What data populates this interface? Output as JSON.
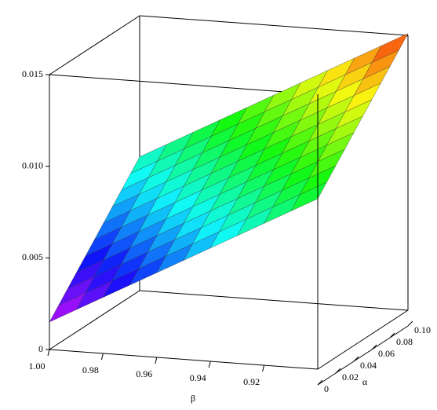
{
  "chart_data": {
    "type": "surface",
    "xlabel": "β",
    "ylabel": "α",
    "x": [
      1.0,
      0.99,
      0.98,
      0.97,
      0.96,
      0.95,
      0.94,
      0.93,
      0.92,
      0.91,
      0.9
    ],
    "y": [
      0,
      0.01,
      0.02,
      0.03,
      0.04,
      0.05,
      0.06,
      0.07,
      0.08,
      0.09,
      0.1
    ],
    "z": [
      [
        0.0015,
        0.00208,
        0.00266,
        0.00324,
        0.00382,
        0.0044,
        0.00498,
        0.00556,
        0.00614,
        0.00672,
        0.0073
      ],
      [
        0.00228,
        0.00286,
        0.00344,
        0.00402,
        0.0046,
        0.00518,
        0.00576,
        0.00634,
        0.00692,
        0.0075,
        0.00808
      ],
      [
        0.00306,
        0.00364,
        0.00422,
        0.0048,
        0.00538,
        0.00596,
        0.00654,
        0.00712,
        0.0077,
        0.00828,
        0.00886
      ],
      [
        0.00384,
        0.00442,
        0.005,
        0.00558,
        0.00616,
        0.00674,
        0.00732,
        0.0079,
        0.00848,
        0.00906,
        0.00964
      ],
      [
        0.00462,
        0.0052,
        0.00578,
        0.00636,
        0.00694,
        0.00752,
        0.0081,
        0.00868,
        0.00926,
        0.00984,
        0.01042
      ],
      [
        0.0054,
        0.00598,
        0.00656,
        0.00714,
        0.00772,
        0.0083,
        0.00888,
        0.00946,
        0.01004,
        0.01062,
        0.0112
      ],
      [
        0.00618,
        0.00676,
        0.00734,
        0.00792,
        0.0085,
        0.00908,
        0.00966,
        0.01024,
        0.01082,
        0.0114,
        0.01198
      ],
      [
        0.00696,
        0.00754,
        0.00812,
        0.0087,
        0.00928,
        0.00986,
        0.01044,
        0.01102,
        0.0116,
        0.01218,
        0.01276
      ],
      [
        0.00774,
        0.00832,
        0.0089,
        0.00948,
        0.01006,
        0.01064,
        0.01122,
        0.0118,
        0.01238,
        0.01296,
        0.01354
      ],
      [
        0.00852,
        0.0091,
        0.00968,
        0.01026,
        0.01084,
        0.01142,
        0.012,
        0.01258,
        0.01316,
        0.01374,
        0.01432
      ],
      [
        0.0093,
        0.00988,
        0.01046,
        0.01104,
        0.01162,
        0.0122,
        0.01278,
        0.01336,
        0.01394,
        0.01452,
        0.0151
      ]
    ],
    "xlim": [
      0.9,
      1.0
    ],
    "ylim": [
      0,
      0.1
    ],
    "zlim": [
      0,
      0.015
    ],
    "xticks": [
      {
        "value": 1,
        "label": "1.00"
      },
      0.98,
      0.96,
      0.94,
      0.92
    ],
    "yticks": [
      0,
      0.02,
      0.04,
      0.06,
      0.08,
      {
        "value": 0.1,
        "label": "0.10"
      }
    ],
    "zticks": [
      0,
      0.005,
      {
        "value": 0.01,
        "label": "0.010"
      },
      0.015
    ]
  }
}
